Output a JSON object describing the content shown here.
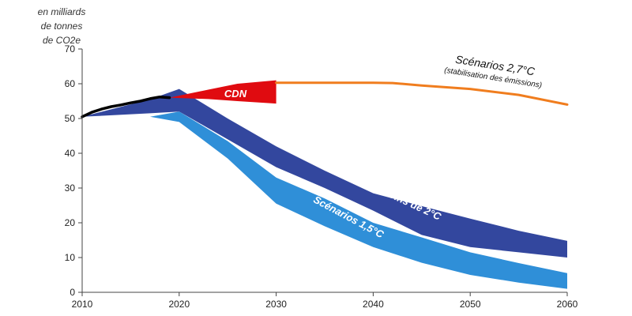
{
  "chart_data": {
    "type": "area",
    "ylabel_lines": [
      "en milliards",
      "de tonnes",
      "de CO2e"
    ],
    "xlim": [
      2010,
      2060
    ],
    "ylim": [
      0,
      70
    ],
    "x_ticks": [
      2010,
      2020,
      2030,
      2040,
      2050,
      2060
    ],
    "y_ticks": [
      0,
      10,
      20,
      30,
      40,
      50,
      60,
      70
    ],
    "grid": false,
    "colors": {
      "historique": "#000000",
      "cdn": "#e00b10",
      "scenario_2_7": "#f07d1e",
      "scenario_2": "#33479e",
      "scenario_1_5": "#2f8fd8"
    },
    "series": [
      {
        "kind": "line",
        "color_key": "historique",
        "x": [
          2010,
          2011,
          2012,
          2013,
          2014,
          2015,
          2016,
          2017,
          2018,
          2019
        ],
        "values": [
          50.5,
          51.8,
          52.7,
          53.4,
          53.9,
          54.5,
          55,
          55.7,
          56.2,
          56
        ]
      },
      {
        "kind": "band",
        "name": "CDN",
        "color_key": "cdn",
        "x": [
          2019,
          2023,
          2026,
          2030
        ],
        "lower": [
          56,
          55.6,
          55,
          54.3
        ],
        "upper": [
          56,
          58.3,
          60,
          61
        ]
      },
      {
        "kind": "line",
        "name": "Scénarios 2,7°C",
        "note": "(stabilisation des émissions)",
        "color_key": "scenario_2_7",
        "x": [
          2030,
          2035,
          2040,
          2042,
          2045,
          2050,
          2055,
          2060
        ],
        "values": [
          60.3,
          60.3,
          60.3,
          60.2,
          59.5,
          58.5,
          56.8,
          54
        ]
      },
      {
        "kind": "band",
        "name": "Scénarios moins de 2°C",
        "color_key": "scenario_2",
        "x": [
          2010,
          2017,
          2020,
          2025,
          2030,
          2035,
          2040,
          2045,
          2050,
          2055,
          2060
        ],
        "lower": [
          50.5,
          51.5,
          52,
          44,
          36,
          30,
          23.5,
          16.5,
          13,
          11.5,
          10
        ],
        "upper": [
          50.5,
          55.5,
          58.5,
          50,
          42,
          35,
          28.5,
          24.8,
          21.2,
          17.7,
          14.8
        ]
      },
      {
        "kind": "band",
        "name": "Scénarios 1,5°C",
        "color_key": "scenario_1_5",
        "x": [
          2017,
          2020,
          2025,
          2030,
          2035,
          2040,
          2045,
          2050,
          2055,
          2060
        ],
        "lower": [
          50.5,
          49,
          38.5,
          25.5,
          19,
          13,
          8.5,
          5,
          2.8,
          1
        ],
        "upper": [
          50.5,
          52,
          43.5,
          33,
          27,
          20,
          15.8,
          11.5,
          8.4,
          5.5
        ]
      }
    ],
    "annotations": {
      "cdn": "CDN",
      "s27_title": "Scénarios 2,7°C",
      "s27_note": "(stabilisation des émissions)",
      "s2": "Scénarios moins de 2°C",
      "s15": "Scénarios 1,5°C"
    }
  }
}
